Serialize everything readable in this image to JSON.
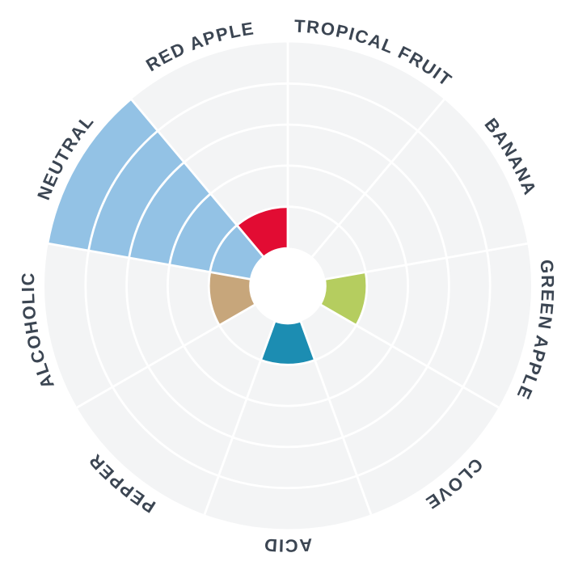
{
  "chart_data": {
    "type": "polar-bar",
    "title": "",
    "categories": [
      "TROPICAL FRUIT",
      "BANANA",
      "GREEN APPLE",
      "CLOVE",
      "ACID",
      "PEPPER",
      "ALCOHOLIC",
      "NEUTRAL",
      "RED APPLE"
    ],
    "values": [
      0,
      0,
      1,
      0,
      1,
      0,
      1,
      5,
      1
    ],
    "bar_colors": [
      null,
      null,
      "#b5cd5f",
      null,
      "#1c8db2",
      null,
      "#c7a67b",
      "#93c2e5",
      "#e20c33"
    ],
    "value_range": [
      0,
      5
    ],
    "ring_gridlines_at": [
      1,
      2,
      3,
      4
    ],
    "sector_span_deg": 40,
    "first_sector_start_deg": 0,
    "direction": "clockwise",
    "grid_on": true,
    "legend": "none",
    "colors": {
      "background_disc": "#f3f4f5",
      "gridline": "#ffffff",
      "center_hole": "#ffffff",
      "label_text": "#3b4552",
      "page_background": "#ffffff"
    }
  }
}
